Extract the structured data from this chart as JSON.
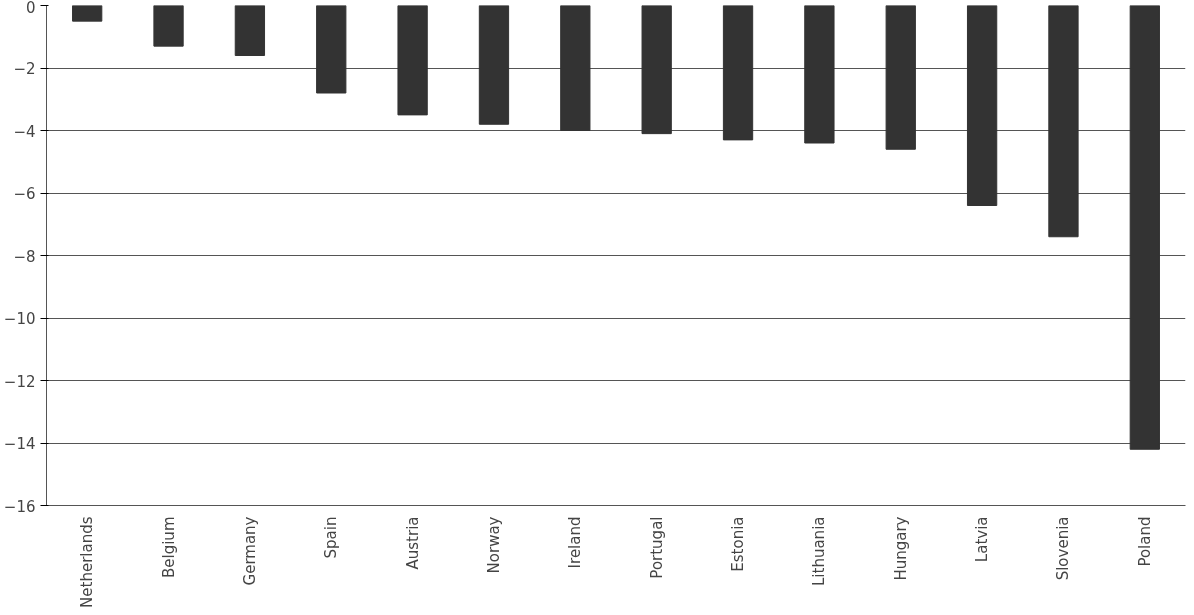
{
  "chart_data": {
    "type": "bar",
    "categories": [
      "Netherlands",
      "Belgium",
      "Germany",
      "Spain",
      "Austria",
      "Norway",
      "Ireland",
      "Portugal",
      "Estonia",
      "Lithuania",
      "Hungary",
      "Latvia",
      "Slovenia",
      "Poland"
    ],
    "values": [
      -0.5,
      -1.3,
      -1.6,
      -2.8,
      -3.5,
      -3.8,
      -4.0,
      -4.1,
      -4.3,
      -4.4,
      -4.6,
      -6.4,
      -7.4,
      -14.2
    ],
    "color": "#333333",
    "ylim": [
      -16,
      0
    ],
    "yticks": [
      -16,
      -14,
      -12,
      -10,
      -8,
      -6,
      -4,
      -2,
      0
    ],
    "grid": "y"
  }
}
